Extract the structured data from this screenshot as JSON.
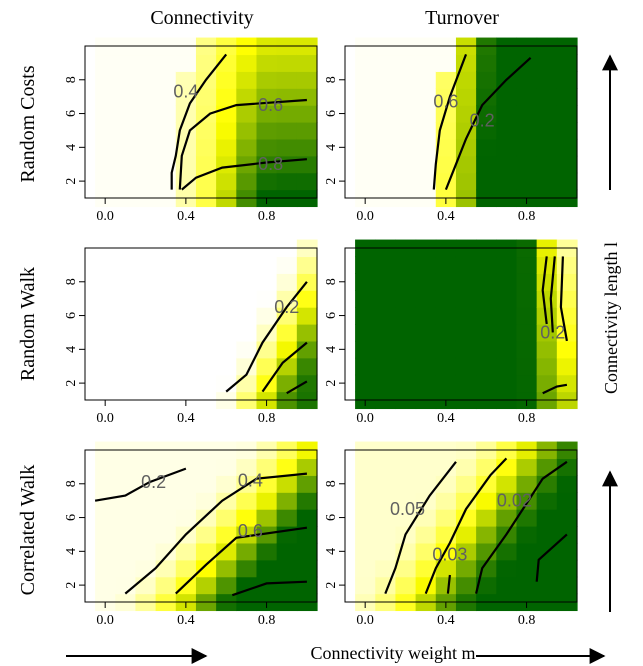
{
  "figure": {
    "column_titles": [
      "Connectivity",
      "Turnover"
    ],
    "row_titles": [
      "Random Costs",
      "Random Walk",
      "Correlated Walk"
    ],
    "x_axis_label": "Connectivity weight m",
    "y_axis_label": "Connectivity length l"
  },
  "colors": {
    "low": "#ffffff",
    "mid": "#ffff00",
    "high": "#006400",
    "contour": "#000000",
    "contour_label": "#606060"
  },
  "chart_data": [
    {
      "type": "heatmap",
      "panel": "Random Costs / Connectivity",
      "x": [
        0.0,
        0.4,
        0.8
      ],
      "y": [
        2,
        4,
        6,
        8
      ],
      "xlim": [
        -0.1,
        1.05
      ],
      "ylim": [
        1,
        10
      ],
      "contour_levels": [
        "0.4",
        "0.6",
        "0.8"
      ],
      "contours": [
        {
          "label": "0.4",
          "pts": [
            [
              0.33,
              1.5
            ],
            [
              0.33,
              2.5
            ],
            [
              0.35,
              3.5
            ],
            [
              0.37,
              5
            ],
            [
              0.42,
              6.6
            ],
            [
              0.5,
              8
            ],
            [
              0.6,
              9.5
            ]
          ]
        },
        {
          "label": "0.6",
          "pts": [
            [
              0.37,
              1.5
            ],
            [
              0.38,
              3.5
            ],
            [
              0.42,
              5
            ],
            [
              0.52,
              6
            ],
            [
              0.65,
              6.5
            ],
            [
              1.0,
              6.8
            ]
          ]
        },
        {
          "label": "0.8",
          "pts": [
            [
              0.38,
              1.5
            ],
            [
              0.45,
              2.2
            ],
            [
              0.58,
              2.8
            ],
            [
              0.8,
              3.1
            ],
            [
              1.0,
              3.3
            ]
          ]
        }
      ],
      "labels": [
        {
          "text": "0.4",
          "at": [
            0.4,
            7.3
          ]
        },
        {
          "text": "0.6",
          "at": [
            0.82,
            6.5
          ]
        },
        {
          "text": "0.8",
          "at": [
            0.82,
            3.0
          ]
        }
      ]
    },
    {
      "type": "heatmap",
      "panel": "Random Costs / Turnover",
      "x": [
        0.0,
        0.4,
        0.8
      ],
      "y": [
        2,
        4,
        6,
        8
      ],
      "xlim": [
        -0.1,
        1.05
      ],
      "ylim": [
        1,
        10
      ],
      "contour_levels": [
        "0.6",
        "0.2"
      ],
      "contours": [
        {
          "label": "0.6",
          "pts": [
            [
              0.34,
              1.5
            ],
            [
              0.35,
              3
            ],
            [
              0.37,
              5
            ],
            [
              0.42,
              7
            ],
            [
              0.5,
              9.5
            ]
          ]
        },
        {
          "label": "0.2",
          "pts": [
            [
              0.4,
              1.5
            ],
            [
              0.45,
              3
            ],
            [
              0.5,
              4.5
            ],
            [
              0.58,
              6.5
            ],
            [
              0.7,
              8
            ],
            [
              0.82,
              9.3
            ]
          ]
        }
      ],
      "labels": [
        {
          "text": "0.6",
          "at": [
            0.4,
            6.7
          ]
        },
        {
          "text": "0.2",
          "at": [
            0.58,
            5.6
          ]
        }
      ]
    },
    {
      "type": "heatmap",
      "panel": "Random Walk / Connectivity",
      "x": [
        0.0,
        0.4,
        0.8
      ],
      "y": [
        2,
        4,
        6,
        8
      ],
      "xlim": [
        -0.1,
        1.05
      ],
      "ylim": [
        1,
        10
      ],
      "contour_levels": [
        "0.2"
      ],
      "contours": [
        {
          "label": "0.2",
          "pts": [
            [
              0.6,
              1.5
            ],
            [
              0.7,
              2.5
            ],
            [
              0.78,
              4.4
            ],
            [
              0.9,
              6.5
            ],
            [
              1.0,
              8
            ]
          ]
        },
        {
          "label": "",
          "pts": [
            [
              0.78,
              1.5
            ],
            [
              0.88,
              3.2
            ],
            [
              1.0,
              4.4
            ]
          ]
        },
        {
          "label": "",
          "pts": [
            [
              0.9,
              1.4
            ],
            [
              1.0,
              2.1
            ]
          ]
        }
      ],
      "labels": [
        {
          "text": "0.2",
          "at": [
            0.9,
            6.5
          ]
        }
      ]
    },
    {
      "type": "heatmap",
      "panel": "Random Walk / Turnover",
      "x": [
        0.0,
        0.4,
        0.8
      ],
      "y": [
        2,
        4,
        6,
        8
      ],
      "xlim": [
        -0.1,
        1.05
      ],
      "ylim": [
        1,
        10
      ],
      "contour_levels": [
        "0.2"
      ],
      "contours": [
        {
          "label": "",
          "pts": [
            [
              0.9,
              9.5
            ],
            [
              0.88,
              7.5
            ],
            [
              0.9,
              5.5
            ]
          ]
        },
        {
          "label": "0.2",
          "pts": [
            [
              0.94,
              9.5
            ],
            [
              0.92,
              7
            ],
            [
              0.93,
              5
            ]
          ]
        },
        {
          "label": "",
          "pts": [
            [
              0.98,
              9.5
            ],
            [
              0.97,
              6.5
            ],
            [
              1.0,
              4.5
            ]
          ]
        },
        {
          "label": "",
          "pts": [
            [
              0.88,
              1.4
            ],
            [
              0.95,
              1.8
            ],
            [
              1.0,
              1.9
            ]
          ]
        }
      ],
      "labels": [
        {
          "text": "0.2",
          "at": [
            0.93,
            5.0
          ]
        }
      ]
    },
    {
      "type": "heatmap",
      "panel": "Correlated Walk / Connectivity",
      "x": [
        0.0,
        0.4,
        0.8
      ],
      "y": [
        2,
        4,
        6,
        8
      ],
      "xlim": [
        -0.1,
        1.05
      ],
      "ylim": [
        1,
        10
      ],
      "contour_levels": [
        "0.2",
        "0.4",
        "0.6"
      ],
      "contours": [
        {
          "label": "0.2",
          "pts": [
            [
              -0.05,
              7.0
            ],
            [
              0.1,
              7.3
            ],
            [
              0.22,
              8.1
            ],
            [
              0.4,
              8.9
            ]
          ]
        },
        {
          "label": "0.4",
          "pts": [
            [
              0.1,
              1.5
            ],
            [
              0.25,
              3
            ],
            [
              0.4,
              5
            ],
            [
              0.58,
              7
            ],
            [
              0.75,
              8.3
            ],
            [
              1.0,
              8.6
            ]
          ]
        },
        {
          "label": "0.6",
          "pts": [
            [
              0.35,
              1.5
            ],
            [
              0.5,
              3.2
            ],
            [
              0.65,
              4.8
            ],
            [
              1.0,
              5.4
            ]
          ]
        },
        {
          "label": "",
          "pts": [
            [
              0.63,
              1.4
            ],
            [
              0.8,
              2.1
            ],
            [
              1.0,
              2.2
            ]
          ]
        }
      ],
      "labels": [
        {
          "text": "0.2",
          "at": [
            0.24,
            8.1
          ]
        },
        {
          "text": "0.4",
          "at": [
            0.72,
            8.2
          ]
        },
        {
          "text": "0.6",
          "at": [
            0.72,
            5.2
          ]
        }
      ]
    },
    {
      "type": "heatmap",
      "panel": "Correlated Walk / Turnover",
      "x": [
        0.0,
        0.4,
        0.8
      ],
      "y": [
        2,
        4,
        6,
        8
      ],
      "xlim": [
        -0.1,
        1.05
      ],
      "ylim": [
        1,
        10
      ],
      "contour_levels": [
        "0.05",
        "0.03",
        "0.02"
      ],
      "contours": [
        {
          "label": "0.05",
          "pts": [
            [
              0.1,
              1.5
            ],
            [
              0.15,
              3
            ],
            [
              0.2,
              5
            ],
            [
              0.32,
              7.3
            ],
            [
              0.45,
              9.3
            ]
          ]
        },
        {
          "label": "0.03",
          "pts": [
            [
              0.3,
              1.5
            ],
            [
              0.35,
              3
            ],
            [
              0.42,
              4.5
            ],
            [
              0.5,
              6.5
            ],
            [
              0.62,
              8.5
            ],
            [
              0.7,
              9.5
            ]
          ]
        },
        {
          "label": "",
          "pts": [
            [
              0.41,
              1.5
            ],
            [
              0.42,
              2.6
            ]
          ]
        },
        {
          "label": "0.02",
          "pts": [
            [
              0.55,
              1.5
            ],
            [
              0.58,
              3
            ],
            [
              0.7,
              5
            ],
            [
              0.88,
              8.3
            ],
            [
              1.0,
              9.3
            ]
          ]
        },
        {
          "label": "",
          "pts": [
            [
              0.85,
              2.2
            ],
            [
              0.86,
              3.5
            ],
            [
              1.0,
              5
            ]
          ]
        }
      ],
      "labels": [
        {
          "text": "0.05",
          "at": [
            0.21,
            6.5
          ]
        },
        {
          "text": "0.03",
          "at": [
            0.42,
            3.8
          ]
        },
        {
          "text": "0.02",
          "at": [
            0.74,
            7.0
          ]
        }
      ]
    }
  ]
}
